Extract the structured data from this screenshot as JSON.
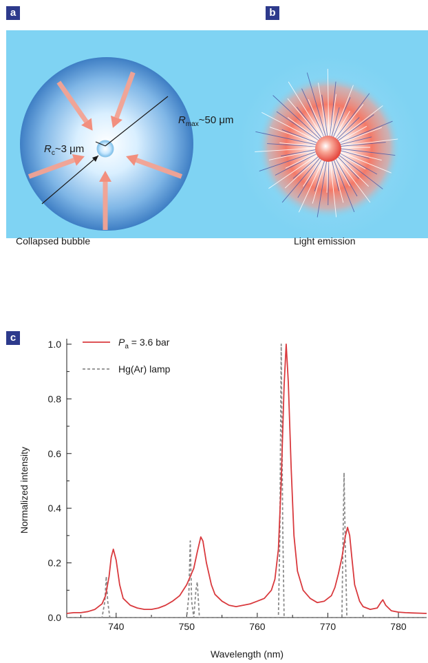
{
  "panels": {
    "a": "a",
    "b": "b",
    "c": "c"
  },
  "illustration": {
    "left_label": "Collapsed bubble",
    "right_label": "Light emission",
    "rc_label": {
      "symbol": "R",
      "sub": "c",
      "value": "~3 μm"
    },
    "rmax_label": {
      "symbol": "R",
      "sub": "max",
      "value": "~50 μm"
    },
    "colors": {
      "background": "#7fd3f3",
      "arrow": "#f4a393",
      "bubble": "#4a8fd0",
      "glow": "#f26b5b",
      "ray": "#4a5aa8"
    }
  },
  "chart_data": {
    "type": "line",
    "xlabel": "Wavelength (nm)",
    "ylabel": "Normalized intensity",
    "xlim": [
      733,
      784
    ],
    "ylim": [
      0,
      1.02
    ],
    "xticks": [
      740,
      750,
      760,
      770,
      780
    ],
    "yticks": [
      "0.0",
      "0.2",
      "0.4",
      "0.6",
      "0.8",
      "1.0"
    ],
    "legend_position": "top-left",
    "series": [
      {
        "name_symbol": "P",
        "name_sub": "a",
        "name_rest": " = 3.6 bar",
        "style": "solid",
        "color": "#d9393d",
        "x": [
          733,
          734,
          735,
          736,
          737,
          738,
          738.5,
          739,
          739.3,
          739.6,
          740,
          740.5,
          741,
          742,
          743,
          744,
          745,
          746,
          747,
          748,
          749,
          749.5,
          750,
          750.5,
          751,
          751.5,
          752,
          752.3,
          752.8,
          753.5,
          754,
          755,
          756,
          757,
          758,
          759,
          760,
          761,
          762,
          762.5,
          763,
          763.4,
          763.8,
          764.1,
          764.4,
          764.8,
          765.2,
          765.7,
          766.5,
          767.5,
          768.5,
          769.5,
          770.5,
          771,
          771.5,
          772,
          772.5,
          772.8,
          773.1,
          773.4,
          773.8,
          774.5,
          775,
          776,
          777,
          777.5,
          777.8,
          778.2,
          779,
          780,
          781,
          782,
          783,
          784
        ],
        "y": [
          0.015,
          0.018,
          0.018,
          0.022,
          0.03,
          0.05,
          0.08,
          0.15,
          0.22,
          0.25,
          0.21,
          0.12,
          0.07,
          0.045,
          0.035,
          0.03,
          0.03,
          0.035,
          0.045,
          0.06,
          0.08,
          0.1,
          0.12,
          0.15,
          0.18,
          0.24,
          0.295,
          0.28,
          0.2,
          0.12,
          0.085,
          0.06,
          0.045,
          0.04,
          0.045,
          0.05,
          0.06,
          0.07,
          0.1,
          0.14,
          0.25,
          0.5,
          0.85,
          1.0,
          0.86,
          0.55,
          0.3,
          0.17,
          0.1,
          0.07,
          0.055,
          0.06,
          0.08,
          0.11,
          0.16,
          0.22,
          0.3,
          0.33,
          0.3,
          0.22,
          0.12,
          0.06,
          0.04,
          0.03,
          0.035,
          0.055,
          0.065,
          0.045,
          0.025,
          0.02,
          0.018,
          0.017,
          0.016,
          0.015
        ]
      },
      {
        "name": "Hg(Ar) lamp",
        "style": "dashed",
        "color": "#8a8a8a",
        "x": [
          733,
          738,
          738.4,
          738.6,
          738.8,
          739.1,
          750,
          750.3,
          750.5,
          750.7,
          751,
          751.3,
          751.5,
          751.8,
          763,
          763.2,
          763.4,
          763.6,
          763.8,
          772,
          772.1,
          772.3,
          772.5,
          772.7,
          784
        ],
        "y": [
          0,
          0,
          0.06,
          0.15,
          0.06,
          0,
          0,
          0.08,
          0.28,
          0.06,
          0,
          0.1,
          0.13,
          0,
          0,
          0.3,
          1.0,
          0.35,
          0,
          0,
          0.2,
          0.53,
          0.22,
          0,
          0
        ]
      }
    ]
  }
}
